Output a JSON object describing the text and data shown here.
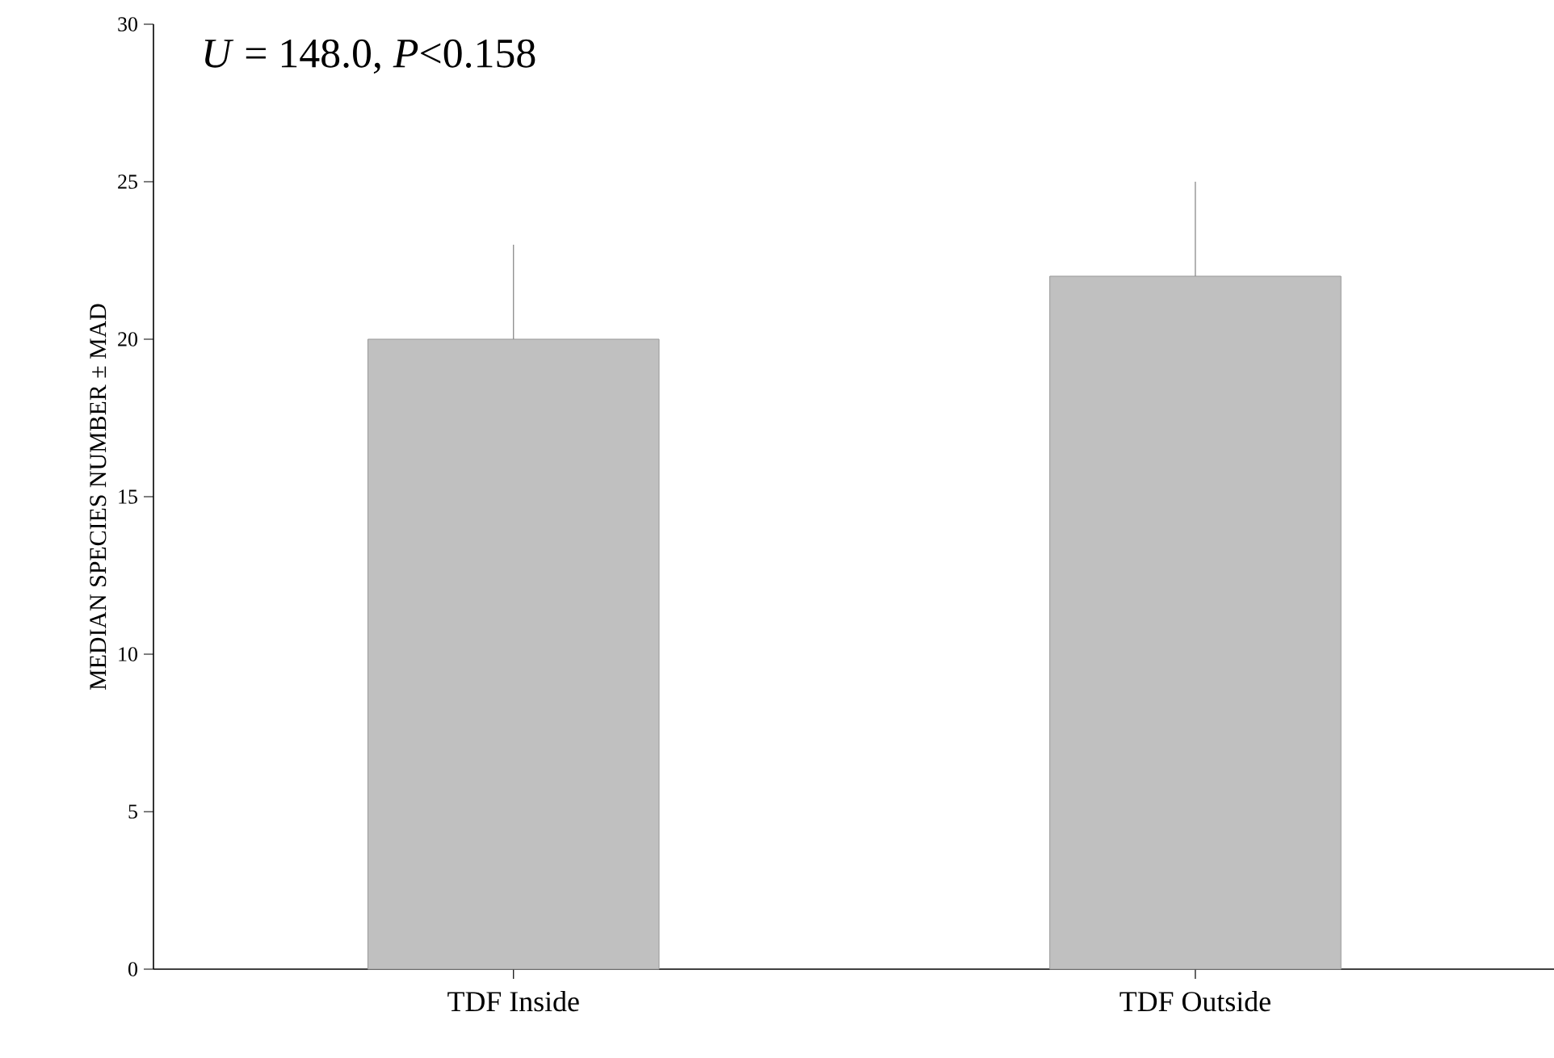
{
  "chart_data": {
    "type": "bar",
    "categories": [
      "TDF Inside",
      "TDF Outside"
    ],
    "values": [
      20,
      22
    ],
    "errors": [
      [
        20,
        23
      ],
      [
        22,
        25
      ]
    ],
    "color": "#c0c0c0",
    "ylabel": "MEDIAN SPECIES NUMBER ± MAD",
    "ylim": [
      0,
      30
    ],
    "yticks": [
      0,
      5,
      10,
      15,
      20,
      25,
      30
    ],
    "annotations": [
      "*U* = 148.0, *P*<0.158"
    ]
  }
}
